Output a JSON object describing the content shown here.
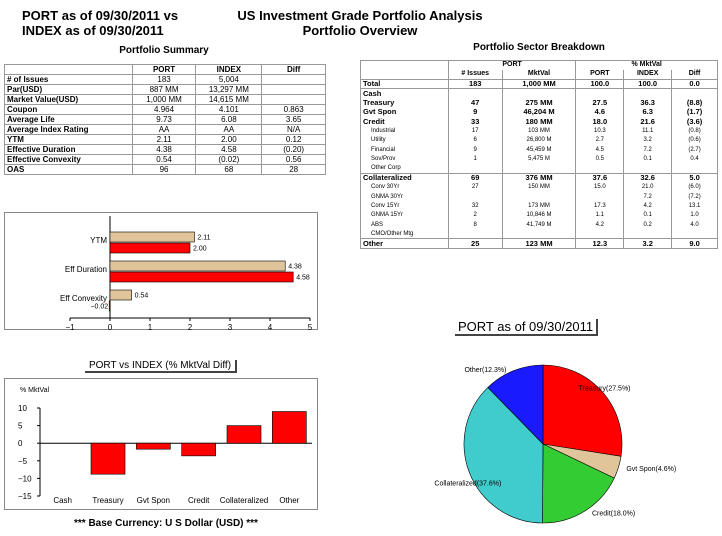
{
  "header": {
    "port_line": "PORT as of 09/30/2011 vs",
    "index_line": "INDEX as of 09/30/2011",
    "title_line1": "US Investment Grade Portfolio Analysis",
    "title_line2": "Portfolio Overview"
  },
  "summary": {
    "title": "Portfolio Summary",
    "columns": [
      "",
      "PORT",
      "INDEX",
      "Diff"
    ],
    "rows": [
      [
        "# of Issues",
        "183",
        "5,004",
        ""
      ],
      [
        "Par(USD)",
        "887 MM",
        "13,297 MM",
        ""
      ],
      [
        "Market Value(USD)",
        "1,000 MM",
        "14,615 MM",
        ""
      ],
      [
        "Coupon",
        "4.964",
        "4.101",
        "0.863"
      ],
      [
        "Average Life",
        "9.73",
        "6.08",
        "3.65"
      ],
      [
        "Average Index Rating",
        "AA",
        "AA",
        "N/A"
      ],
      [
        "YTM",
        "2.11",
        "2.00",
        "0.12"
      ],
      [
        "Effective Duration",
        "4.38",
        "4.58",
        "(0.20)"
      ],
      [
        "Effective Convexity",
        "0.54",
        "(0.02)",
        "0.56"
      ],
      [
        "OAS",
        "96",
        "68",
        "28"
      ]
    ]
  },
  "sector": {
    "title": "Portfolio Sector Breakdown",
    "group_port": "PORT",
    "group_mktval": "% MktVal",
    "columns": [
      "",
      "# Issues",
      "MktVal",
      "PORT",
      "INDEX",
      "Diff"
    ],
    "rows": [
      {
        "cells": [
          "Total",
          "183",
          "1,000 MM",
          "100.0",
          "100.0",
          "0.0"
        ],
        "style": "bold"
      },
      {
        "cells": [
          "Cash",
          "",
          "",
          "",
          "",
          ""
        ],
        "style": "bold"
      },
      {
        "cells": [
          "Treasury",
          "47",
          "275 MM",
          "27.5",
          "36.3",
          "(8.8)"
        ],
        "style": "bold"
      },
      {
        "cells": [
          "Gvt Spon",
          "9",
          "46,204 M",
          "4.6",
          "6.3",
          "(1.7)"
        ],
        "style": "bold"
      },
      {
        "cells": [
          "Credit",
          "33",
          "180 MM",
          "18.0",
          "21.6",
          "(3.6)"
        ],
        "style": "bold"
      },
      {
        "cells": [
          "Industrial",
          "17",
          "103 MM",
          "10.3",
          "11.1",
          "(0.8)"
        ],
        "style": "sub"
      },
      {
        "cells": [
          "Utility",
          "6",
          "26,800 M",
          "2.7",
          "3.2",
          "(0.6)"
        ],
        "style": "sub"
      },
      {
        "cells": [
          "Financial",
          "9",
          "45,459 M",
          "4.5",
          "7.2",
          "(2.7)"
        ],
        "style": "sub"
      },
      {
        "cells": [
          "Sov/Prov",
          "1",
          "5,475 M",
          "0.5",
          "0.1",
          "0.4"
        ],
        "style": "sub"
      },
      {
        "cells": [
          "Other Corp",
          "",
          "",
          "",
          "",
          ""
        ],
        "style": "sub"
      },
      {
        "cells": [
          "Collateralized",
          "69",
          "376 MM",
          "37.6",
          "32.6",
          "5.0"
        ],
        "style": "bold"
      },
      {
        "cells": [
          "Conv 30Yr",
          "27",
          "150 MM",
          "15.0",
          "21.0",
          "(6.0)"
        ],
        "style": "sub"
      },
      {
        "cells": [
          "GNMA 30Yr",
          "",
          "",
          "",
          "7.2",
          "(7.2)"
        ],
        "style": "sub"
      },
      {
        "cells": [
          "Conv 15Yr",
          "32",
          "173 MM",
          "17.3",
          "4.2",
          "13.1"
        ],
        "style": "sub"
      },
      {
        "cells": [
          "GNMA 15Yr",
          "2",
          "10,846 M",
          "1.1",
          "0.1",
          "1.0"
        ],
        "style": "sub"
      },
      {
        "cells": [
          "ABS",
          "8",
          "41,749 M",
          "4.2",
          "0.2",
          "4.0"
        ],
        "style": "sub"
      },
      {
        "cells": [
          "CMO/Other Mtg",
          "",
          "",
          "",
          "",
          ""
        ],
        "style": "sub"
      },
      {
        "cells": [
          "Other",
          "25",
          "123 MM",
          "12.3",
          "3.2",
          "9.0"
        ],
        "style": "bold"
      }
    ]
  },
  "footer": "*** Base Currency: U S Dollar (USD) ***",
  "chart_data": [
    {
      "type": "bar",
      "orientation": "horizontal",
      "title": "",
      "categories": [
        "YTM",
        "Eff Duration",
        "Eff Convexity"
      ],
      "series": [
        {
          "values": [
            2.11,
            4.38,
            0.54
          ],
          "color": "#e0c49a"
        },
        {
          "values": [
            2.0,
            4.58,
            -0.02
          ],
          "color": "#ff0000"
        }
      ],
      "data_labels": [
        [
          "2.11",
          "4.38",
          "0.54"
        ],
        [
          "2.00",
          "4.58",
          "−0.02"
        ]
      ],
      "xlim": [
        -1,
        5
      ],
      "xticks": [
        "−1",
        "0",
        "1",
        "2",
        "3",
        "4",
        "5"
      ],
      "grid": false
    },
    {
      "type": "bar",
      "title": "PORT vs INDEX (% MktVal Diff)",
      "ylabel": "% MktVal",
      "categories": [
        "Cash",
        "Treasury",
        "Gvt Spon",
        "Credit",
        "Collateralized",
        "Other"
      ],
      "values": [
        0,
        -8.8,
        -1.7,
        -3.6,
        5.0,
        9.0
      ],
      "color": "#ff0000",
      "ylim": [
        -15,
        10
      ],
      "yticks": [
        "10",
        "5",
        "0",
        "−5",
        "−10",
        "−15"
      ],
      "grid": false
    },
    {
      "type": "pie",
      "title": "PORT as of 09/30/2011",
      "slices": [
        {
          "label": "Treasury(27.5%)",
          "value": 27.5,
          "color": "#ff0000"
        },
        {
          "label": "Gvt Spon(4.6%)",
          "value": 4.6,
          "color": "#e0c49a"
        },
        {
          "label": "Credit(18.0%)",
          "value": 18.0,
          "color": "#33cc33"
        },
        {
          "label": "Collateralized(37.6%)",
          "value": 37.6,
          "color": "#40cccc"
        },
        {
          "label": "Other(12.3%)",
          "value": 12.3,
          "color": "#1a1aff"
        }
      ]
    }
  ]
}
